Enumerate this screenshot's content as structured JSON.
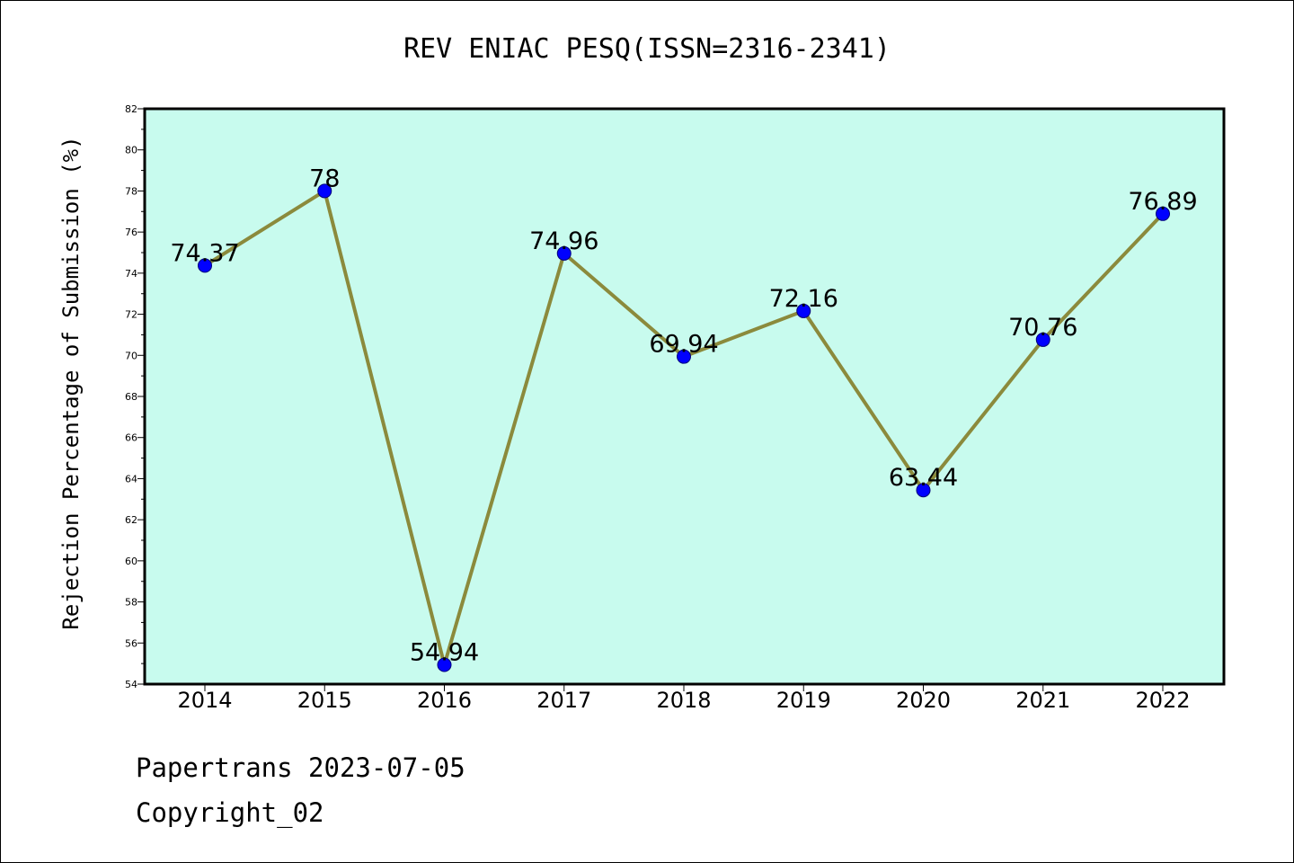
{
  "chart_data": {
    "type": "line",
    "title": "REV ENIAC PESQ(ISSN=2316-2341)",
    "xlabel": "",
    "ylabel": "Rejection Percentage of Submission (%)",
    "categories": [
      "2014",
      "2015",
      "2016",
      "2017",
      "2018",
      "2019",
      "2020",
      "2021",
      "2022"
    ],
    "series": [
      {
        "values": [
          74.37,
          78,
          54.94,
          74.96,
          69.94,
          72.16,
          63.44,
          70.76,
          76.89
        ]
      }
    ],
    "data_labels": [
      "74.37",
      "78",
      "54.94",
      "74.96",
      "69.94",
      "72.16",
      "63.44",
      "70.76",
      "76.89"
    ],
    "ylim": [
      54,
      82
    ],
    "yticks": [
      54,
      56,
      58,
      60,
      62,
      64,
      66,
      68,
      70,
      72,
      74,
      76,
      78,
      80,
      82
    ],
    "grid": false,
    "colors": {
      "plot_background": "#c8fbee",
      "line": "#8b8a3c",
      "marker": "#0000ff",
      "marker_edge": "#00007a"
    }
  },
  "footer": {
    "line1": "Papertrans 2023-07-05",
    "line2": "Copyright_02"
  }
}
